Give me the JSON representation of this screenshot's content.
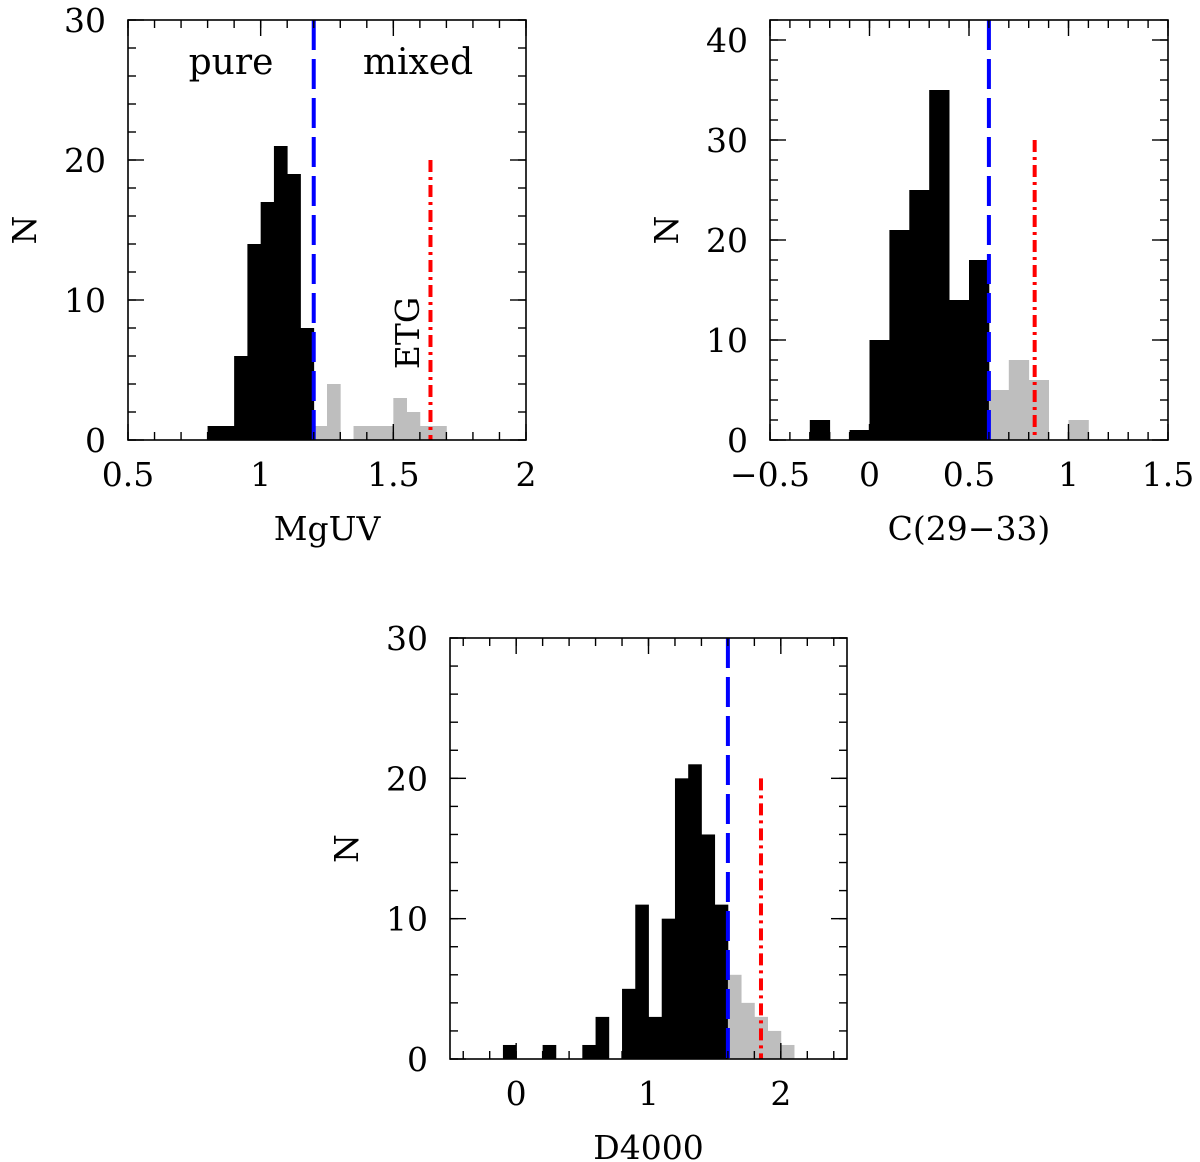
{
  "chart_data": [
    {
      "type": "bar",
      "xlabel": "MgUV",
      "ylabel": "N",
      "xlim": [
        0.5,
        2.0
      ],
      "ylim": [
        0,
        30
      ],
      "xticks": [
        0.5,
        1.0,
        1.5,
        2.0
      ],
      "xtick_labels": [
        "0.5",
        "1",
        "1.5",
        "2"
      ],
      "yticks": [
        0,
        10,
        20,
        30
      ],
      "ytick_labels": [
        "0",
        "10",
        "20",
        "30"
      ],
      "bin_width": 0.05,
      "series": [
        {
          "name": "pure",
          "color": "#000000",
          "bin_starts": [
            0.8,
            0.85,
            0.9,
            0.95,
            1.0,
            1.05,
            1.1,
            1.15
          ],
          "values": [
            1,
            1,
            6,
            14,
            17,
            21,
            19,
            8
          ]
        },
        {
          "name": "mixed",
          "color": "#bebebe",
          "bin_starts": [
            1.2,
            1.25,
            1.35,
            1.4,
            1.45,
            1.5,
            1.55,
            1.6,
            1.65
          ],
          "values": [
            1,
            4,
            1,
            1,
            1,
            3,
            2,
            1,
            1
          ]
        }
      ],
      "cut_line": {
        "x": 1.2,
        "color": "#0000ff",
        "style": "dashed",
        "ymax": 30
      },
      "etg_line": {
        "x": 1.64,
        "color": "#ff0000",
        "style": "dash-dot",
        "ymax": 20
      },
      "annotations": [
        {
          "text": "pure",
          "color": "#000000"
        },
        {
          "text": "mixed",
          "color": "#bebebe"
        },
        {
          "text": "ETG",
          "color": "#ff0000"
        }
      ]
    },
    {
      "type": "bar",
      "xlabel": "C(29−33)",
      "ylabel": "N",
      "xlim": [
        -0.5,
        1.5
      ],
      "ylim": [
        0,
        42
      ],
      "xticks": [
        -0.5,
        0.0,
        0.5,
        1.0,
        1.5
      ],
      "xtick_labels": [
        "−0.5",
        "0",
        "0.5",
        "1",
        "1.5"
      ],
      "yticks": [
        0,
        10,
        20,
        30,
        40
      ],
      "ytick_labels": [
        "0",
        "10",
        "20",
        "30",
        "40"
      ],
      "bin_width": 0.1,
      "series": [
        {
          "name": "pure",
          "color": "#000000",
          "bin_starts": [
            -0.3,
            -0.1,
            0.0,
            0.1,
            0.2,
            0.3,
            0.4,
            0.5
          ],
          "values": [
            2,
            1,
            10,
            21,
            25,
            35,
            14,
            18
          ]
        },
        {
          "name": "mixed",
          "color": "#bebebe",
          "bin_starts": [
            0.6,
            0.7,
            0.8,
            1.0
          ],
          "values": [
            5,
            8,
            6,
            2
          ]
        }
      ],
      "cut_line": {
        "x": 0.6,
        "color": "#0000ff",
        "style": "dashed",
        "ymax": 42
      },
      "etg_line": {
        "x": 0.83,
        "color": "#ff0000",
        "style": "dash-dot",
        "ymax": 30
      }
    },
    {
      "type": "bar",
      "xlabel": "D4000",
      "ylabel": "N",
      "xlim": [
        -0.5,
        2.5
      ],
      "ylim": [
        0,
        30
      ],
      "xticks": [
        0,
        1,
        2
      ],
      "xtick_labels": [
        "0",
        "1",
        "2"
      ],
      "yticks": [
        0,
        10,
        20,
        30
      ],
      "ytick_labels": [
        "0",
        "10",
        "20",
        "30"
      ],
      "bin_width": 0.1,
      "series": [
        {
          "name": "pure",
          "color": "#000000",
          "bin_starts": [
            -0.1,
            0.2,
            0.5,
            0.6,
            0.8,
            0.9,
            1.0,
            1.1,
            1.2,
            1.3,
            1.4,
            1.5
          ],
          "values": [
            1,
            1,
            1,
            3,
            5,
            11,
            3,
            10,
            20,
            21,
            16,
            11
          ]
        },
        {
          "name": "mixed",
          "color": "#bebebe",
          "bin_starts": [
            1.6,
            1.7,
            1.8,
            1.9,
            2.0
          ],
          "values": [
            6,
            4,
            3,
            2,
            1
          ]
        }
      ],
      "cut_line": {
        "x": 1.6,
        "color": "#0000ff",
        "style": "dashed",
        "ymax": 30
      },
      "etg_line": {
        "x": 1.85,
        "color": "#ff0000",
        "style": "dash-dot",
        "ymax": 20
      }
    }
  ]
}
